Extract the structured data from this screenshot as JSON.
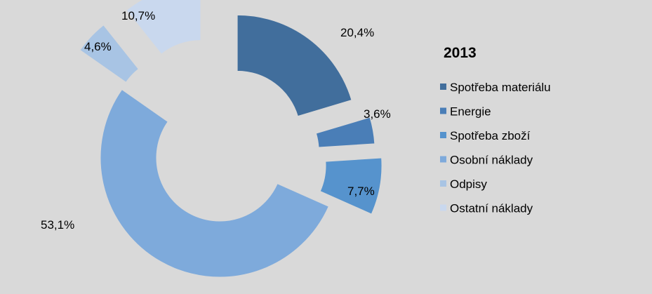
{
  "chart_data": {
    "type": "pie",
    "variant": "exploded-donut",
    "title": "2013",
    "categories": [
      "Spotřeba materiálu",
      "Energie",
      "Spotřeba zboží",
      "Osobní náklady",
      "Odpisy",
      "Ostatní náklady"
    ],
    "values": [
      20.4,
      3.6,
      7.7,
      53.1,
      4.6,
      10.7
    ],
    "data_labels": [
      "20,4%",
      "3,6%",
      "7,7%",
      "53,1%",
      "4,6%",
      "10,7%"
    ],
    "colors": [
      "#416e9c",
      "#4a7eb7",
      "#5693cd",
      "#7eaadb",
      "#a8c4e4",
      "#c9d8ee"
    ],
    "legend_position": "right"
  }
}
